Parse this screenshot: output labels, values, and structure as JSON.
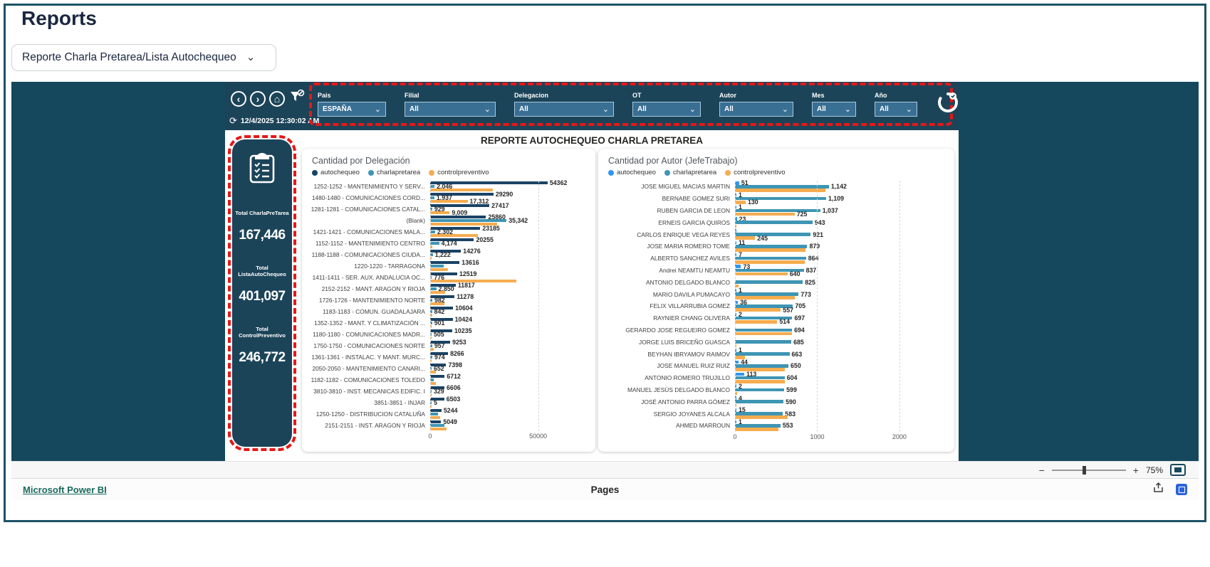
{
  "header": {
    "title": "Reports"
  },
  "selector": {
    "value": "Reporte Charla Pretarea/Lista Autochequeo",
    "chevron": "⌄"
  },
  "embed": {
    "nav": {
      "back": "‹",
      "forward": "›",
      "home": "⌂"
    },
    "timestamp": "12/4/2025 12:30:02 AM",
    "filters": [
      {
        "label": "Pais",
        "value": "ESPAÑA"
      },
      {
        "label": "Filial",
        "value": "All"
      },
      {
        "label": "Delegacion",
        "value": "All"
      },
      {
        "label": "OT",
        "value": "All"
      },
      {
        "label": "Autor",
        "value": "All"
      },
      {
        "label": "Mes",
        "value": "All"
      },
      {
        "label": "Año",
        "value": "All"
      }
    ],
    "report_title": "REPORTE AUTOCHEQUEO CHARLA PRETAREA",
    "kpis": [
      {
        "label": "Total CharlaPreTarea",
        "value": "167,446"
      },
      {
        "label": "Total ListaAutoChequeo",
        "value": "401,097"
      },
      {
        "label": "Total ControlPreventivo",
        "value": "246,772"
      }
    ]
  },
  "chart_data": [
    {
      "type": "bar",
      "orientation": "horizontal",
      "title": "Cantidad por Delegación",
      "xlabel": "",
      "ylabel": "",
      "xlim": [
        0,
        60000
      ],
      "xticks": [
        0,
        50000
      ],
      "grid": "vertical-dotted",
      "legend_position": "top",
      "legend": [
        "autochequeo",
        "charlapretarea",
        "controlpreventivo"
      ],
      "colors": {
        "autochequeo": "#1a4365",
        "charlapretarea": "#3e95b4",
        "controlpreventivo": "#f6ac4f"
      },
      "categories": [
        "1252-1252 - MANTENIMIENTO Y SERV...",
        "1480-1480 - COMUNICACIONES CORD...",
        "1281-1281 - COMUNICACIONES CATAL...",
        "(Blank)",
        "1421-1421 - COMUNICACIONES MALA...",
        "1152-1152 - MANTENIMIENTO CENTRO",
        "1188-1188 - COMUNICACIONES CIUDA...",
        "1220-1220 - TARRAGONA",
        "1411-1411 - SER. AUX. ANDALUCIA OC...",
        "2152-2152 - MANT. ARAGON Y RIOJA",
        "1726-1726 - MANTENIMIENTO NORTE",
        "1183-1183 - COMUN. GUADALAJARA",
        "1352-1352 - MANT. Y CLIMATIZACIÓN ...",
        "1180-1180 - COMUNICACIONES MADR...",
        "1750-1750 - COMUNICACIONES NORTE",
        "1361-1361 - INSTALAC. Y MANT. MURC...",
        "2050-2050 - MANTENIMIENTO CANARI...",
        "1182-1182 - COMUNICACIONES TOLEDO",
        "3810-3810 - INST. MECANICAS EDIFIC. I",
        "3851-3851 - INJAR",
        "1250-1250 - DISTRIBUCION CATALUÑA",
        "2151-2151 - INST. ARAGON Y RIOJA"
      ],
      "series": [
        {
          "name": "autochequeo",
          "values": [
            54362,
            29290,
            27417,
            25860,
            23185,
            20255,
            14276,
            13616,
            12519,
            11817,
            11278,
            10604,
            10424,
            10235,
            9253,
            8266,
            7398,
            6712,
            6606,
            6503,
            5244,
            5049
          ],
          "display_labels": [
            "54362",
            "29290",
            "27417",
            "25860",
            "23185",
            "20255",
            "14276",
            "13616",
            "12519",
            "11817",
            "11278",
            "10604",
            "10424",
            "10235",
            "9253",
            "8266",
            "7398",
            "6712",
            "6606",
            "6503",
            "5244",
            "5049"
          ]
        },
        {
          "name": "charlapretarea",
          "values": [
            2046,
            1937,
            929,
            35342,
            2302,
            4174,
            1222,
            6200,
            776,
            2850,
            982,
            842,
            901,
            505,
            957,
            974,
            652,
            1700,
            329,
            5,
            3700,
            6500
          ],
          "display_labels": [
            "2,046",
            "1,937",
            "929",
            "35,342",
            "2,302",
            "4,174",
            "1,222",
            "",
            "776",
            "2,850",
            "982",
            "842",
            "901",
            "505",
            "957",
            "974",
            "652",
            "",
            "329",
            "5",
            "",
            ""
          ]
        },
        {
          "name": "controlpreventivo",
          "values": [
            29000,
            17312,
            9009,
            31000,
            22000,
            1100,
            600,
            8200,
            40000,
            6800,
            6500,
            900,
            600,
            400,
            1500,
            800,
            2800,
            2500,
            700,
            600,
            4500,
            7500
          ],
          "display_labels": [
            "",
            "17,312",
            "9,009",
            "",
            "",
            "",
            "",
            "",
            "",
            "",
            "",
            "",
            "",
            "",
            "",
            "",
            "",
            "",
            "",
            "",
            "",
            ""
          ]
        }
      ]
    },
    {
      "type": "bar",
      "orientation": "horizontal",
      "title": "Cantidad por Autor (JefeTrabajo)",
      "xlabel": "",
      "ylabel": "",
      "xlim": [
        0,
        2200
      ],
      "xticks": [
        0,
        1000,
        2000
      ],
      "grid": "vertical-dotted",
      "legend_position": "top",
      "legend": [
        "autochequeo",
        "charlapretarea",
        "controlpreventivo"
      ],
      "colors": {
        "autochequeo": "#2f96f3",
        "charlapretarea": "#3e95b4",
        "controlpreventivo": "#f6ac4f"
      },
      "categories": [
        "JOSE MIGUEL MACIAS MARTIN",
        "BERNABE GOMEZ SURI",
        "RUBEN GARCIA DE LEON",
        "ERNEIS GARCIA QUIROS",
        "CARLOS ENRIQUE VEGA REYES",
        "JOSE MARIA ROMERO TOME",
        "ALBERTO SANCHEZ AVILES",
        "Andrei NEAMTU NEAMTU",
        "ANTONIO DELGADO BLANCO",
        "MARIO DAVILA PUMACAYO",
        "FELIX VILLARRUBIA GOMEZ",
        "RAYNIER CHANG OLIVERA",
        "GERARDO JOSE REGUEIRO GOMEZ",
        "JORGE LUIS BRICEÑO GUASCA",
        "BEYHAN IBRYAMOV RAIMOV",
        "JOSE MANUEL RUIZ RUIZ",
        "ANTONIO ROMERO TRUJILLO",
        "MANUEL JESÚS DELGADO BLANCO",
        "JOSÉ ANTONIO PARRA GÓMEZ",
        "SERGIO JOYANES ALCALA",
        "AHMED MARROUN"
      ],
      "series": [
        {
          "name": "autochequeo",
          "values": [
            51,
            1,
            1,
            23,
            2,
            11,
            7,
            73,
            0,
            1,
            36,
            2,
            0,
            0,
            1,
            44,
            113,
            2,
            4,
            15,
            1
          ],
          "display_labels": [
            "51",
            "1",
            "1",
            "23",
            "",
            "11",
            "7",
            "73",
            "",
            "1",
            "36",
            "2",
            "",
            "",
            "1",
            "44",
            "113",
            "2",
            "4",
            "15",
            "1"
          ]
        },
        {
          "name": "charlapretarea",
          "values": [
            1142,
            1109,
            1037,
            943,
            921,
            879,
            864,
            837,
            825,
            773,
            705,
            697,
            694,
            685,
            663,
            650,
            604,
            599,
            590,
            583,
            553
          ],
          "display_labels": [
            "1,142",
            "1,109",
            "1,037",
            "943",
            "921",
            "879",
            "864",
            "837",
            "825",
            "773",
            "705",
            "697",
            "694",
            "685",
            "663",
            "650",
            "604",
            "599",
            "590",
            "583",
            "553"
          ]
        },
        {
          "name": "controlpreventivo",
          "values": [
            1100,
            130,
            725,
            20,
            245,
            860,
            850,
            640,
            40,
            730,
            557,
            514,
            690,
            10,
            120,
            610,
            610,
            30,
            10,
            640,
            530
          ],
          "display_labels": [
            "",
            "130",
            "725",
            "",
            "245",
            "",
            "",
            "640",
            "",
            "",
            "557",
            "514",
            "",
            "",
            "",
            "",
            "",
            "",
            "",
            "",
            ""
          ]
        }
      ]
    }
  ],
  "footer": {
    "minus": "−",
    "plus": "+",
    "zoom_level": "75%",
    "brand_link": "Microsoft Power BI",
    "pages_label": "Pages"
  }
}
